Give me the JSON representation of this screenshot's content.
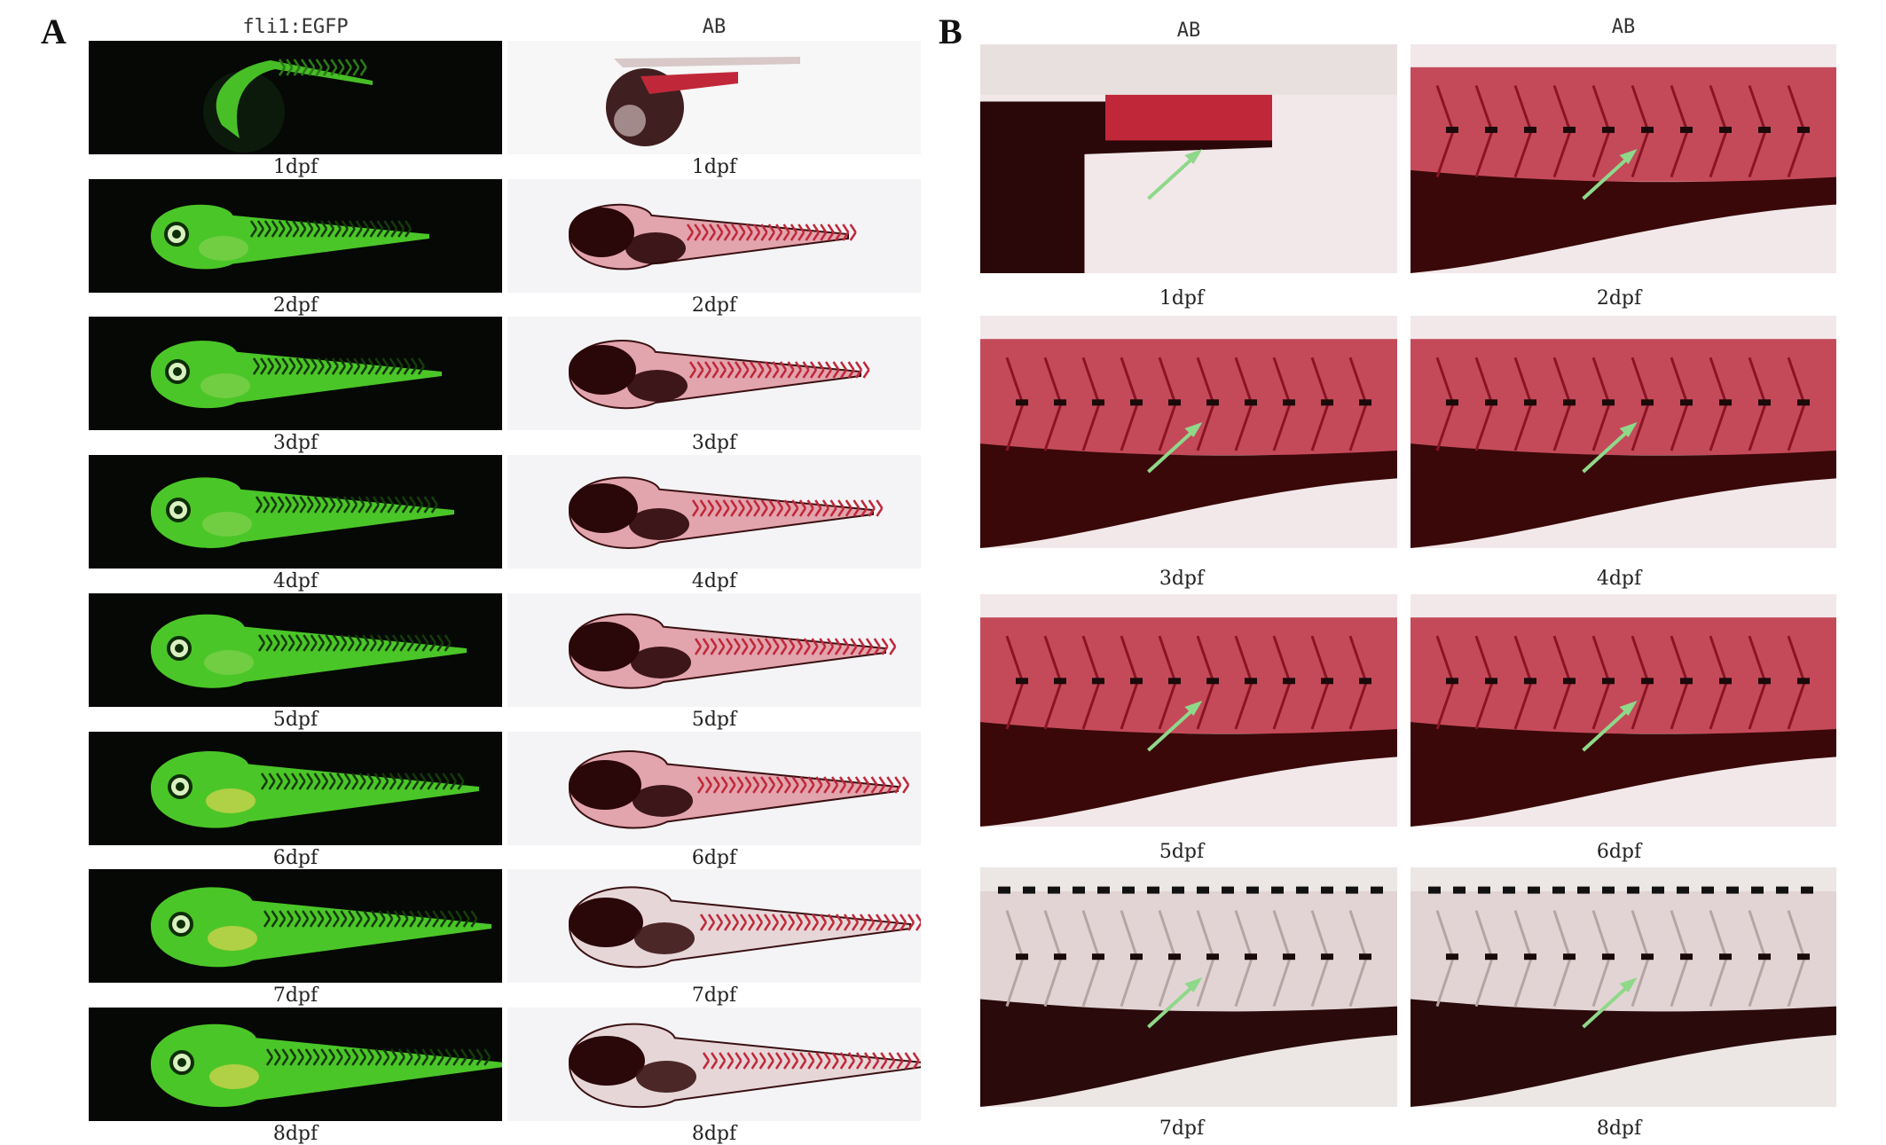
{
  "panels": {
    "a": {
      "letter": "A",
      "col1_header": "fli1:EGFP",
      "col2_header": "AB",
      "stages": [
        "1dpf",
        "2dpf",
        "3dpf",
        "4dpf",
        "5dpf",
        "6dpf",
        "7dpf",
        "8dpf"
      ]
    },
    "b": {
      "letter": "B",
      "col1_header": "AB",
      "col2_header": "AB",
      "stages": [
        "1dpf",
        "2dpf",
        "3dpf",
        "4dpf",
        "5dpf",
        "6dpf",
        "7dpf",
        "8dpf"
      ]
    }
  },
  "colors": {
    "fluorescence_bg": "#050805",
    "egfp_green": "#4fd12a",
    "stain_red": "#c0283a",
    "dark_tissue": "#2a0708",
    "arrow": "#8fd88a"
  }
}
